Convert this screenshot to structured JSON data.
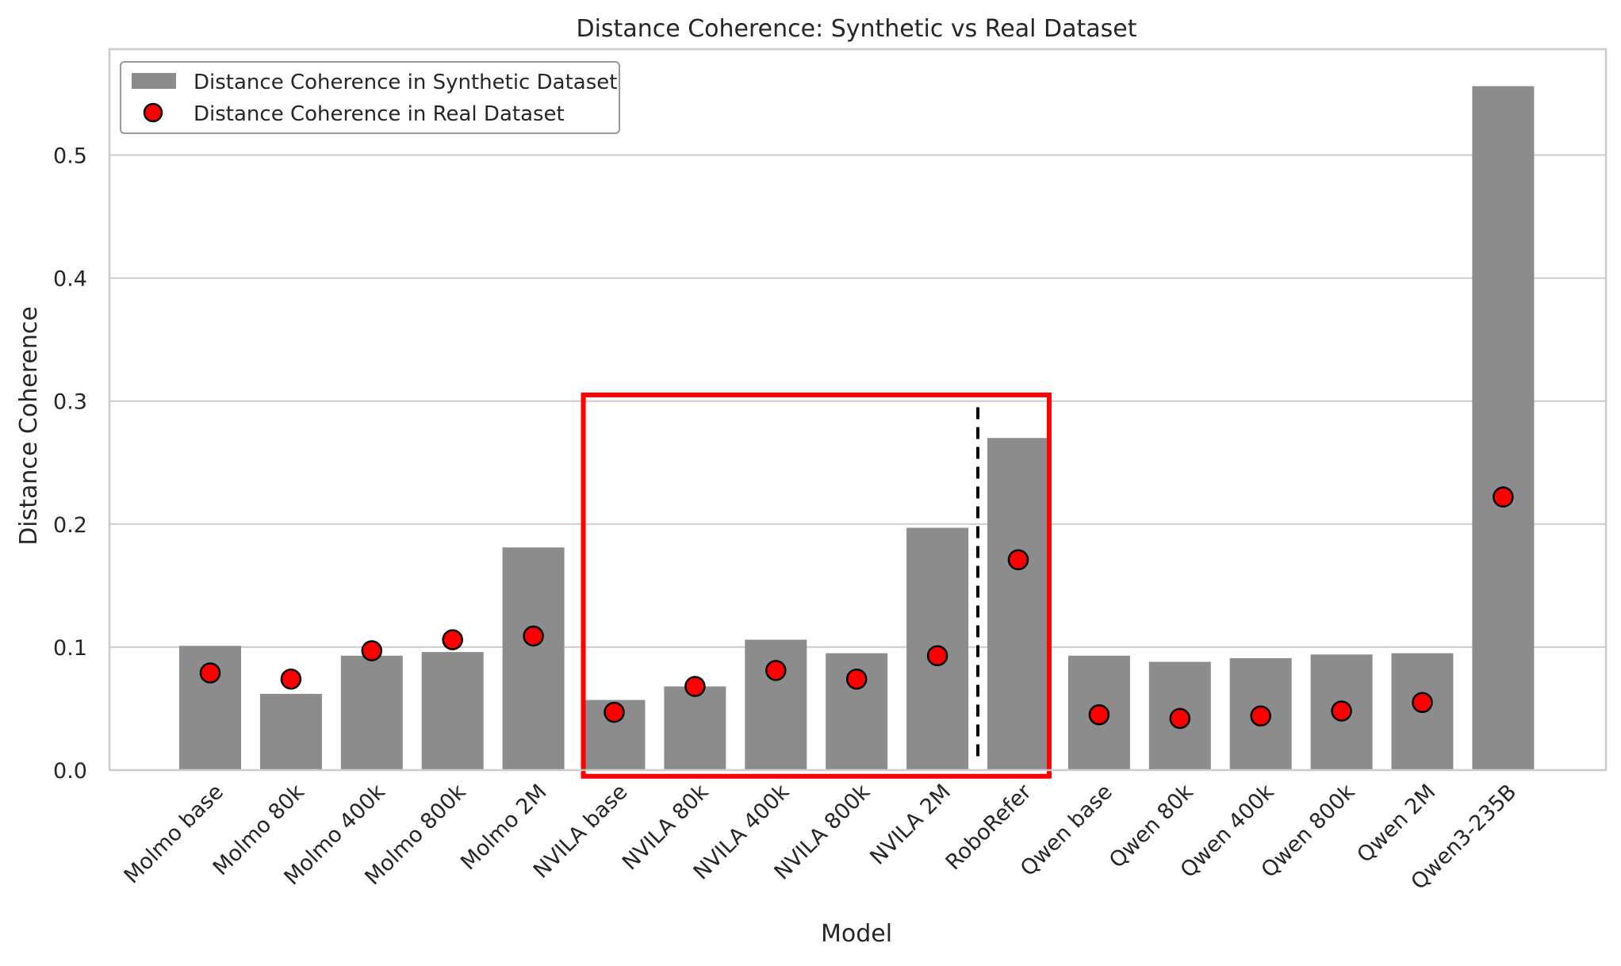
{
  "chart_data": {
    "type": "bar",
    "title": "Distance Coherence: Synthetic vs Real Dataset",
    "xlabel": "Model",
    "ylabel": "Distance Coherence",
    "ylim": [
      0,
      0.58
    ],
    "yticks": [
      0.0,
      0.1,
      0.2,
      0.3,
      0.4,
      0.5
    ],
    "ytick_labels": [
      "0.0",
      "0.1",
      "0.2",
      "0.3",
      "0.4",
      "0.5"
    ],
    "grid": true,
    "legend_position": "top-left",
    "categories": [
      "Molmo base",
      "Molmo 80k",
      "Molmo 400k",
      "Molmo 800k",
      "Molmo 2M",
      "NVILA base",
      "NVILA 80k",
      "NVILA 400k",
      "NVILA 800k",
      "NVILA 2M",
      "RoboRefer",
      "Qwen base",
      "Qwen 80k",
      "Qwen 400k",
      "Qwen 800k",
      "Qwen 2M",
      "Qwen3-235B"
    ],
    "series": [
      {
        "name": "Distance Coherence in Synthetic Dataset",
        "kind": "bar",
        "color": "#8c8c8c",
        "values": [
          0.101,
          0.062,
          0.093,
          0.096,
          0.181,
          0.057,
          0.068,
          0.106,
          0.095,
          0.197,
          0.27,
          0.093,
          0.088,
          0.091,
          0.094,
          0.095,
          0.556
        ]
      },
      {
        "name": "Distance Coherence in Real Dataset",
        "kind": "scatter",
        "color": "#ff0000",
        "edge_color": "#000000",
        "values": [
          0.079,
          0.074,
          0.097,
          0.106,
          0.109,
          0.047,
          0.068,
          0.081,
          0.074,
          0.093,
          0.171,
          0.045,
          0.042,
          0.044,
          0.048,
          0.055,
          0.222
        ]
      }
    ],
    "annotations": {
      "highlight_box": {
        "color": "#ff0000",
        "from_category": "NVILA base",
        "to_category": "RoboRefer",
        "y_range": [
          -0.005,
          0.305
        ]
      },
      "divider_line": {
        "color": "#000000",
        "style": "dashed",
        "between": [
          "NVILA 2M",
          "RoboRefer"
        ],
        "y_range": [
          0.008,
          0.295
        ]
      }
    },
    "colors": {
      "grid": "#cccccc",
      "axes_edge": "#cccccc",
      "text": "#262626"
    }
  }
}
